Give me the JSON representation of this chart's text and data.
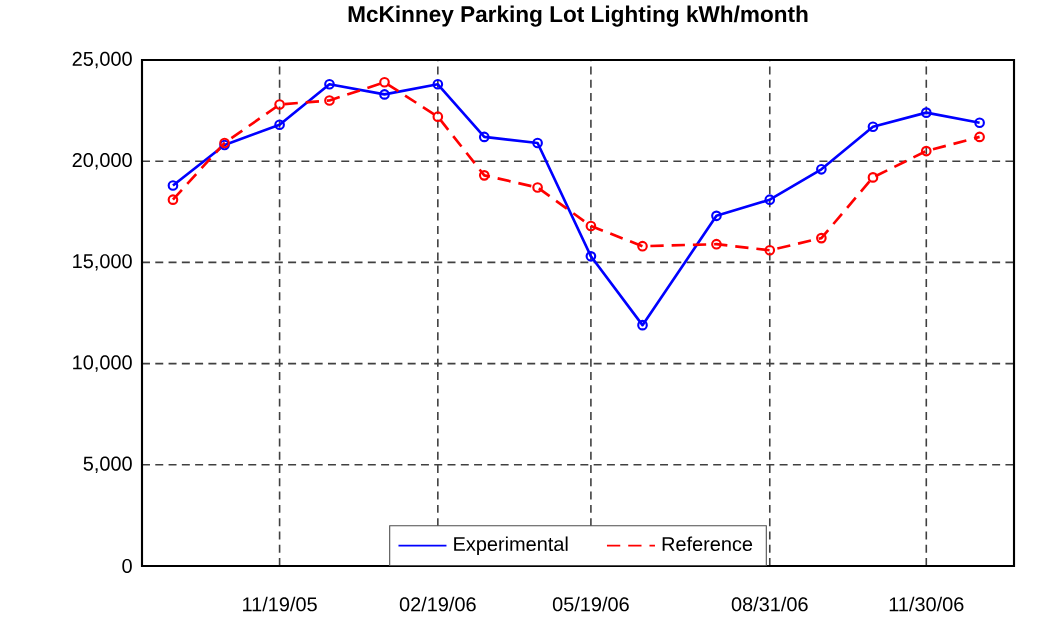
{
  "chart_data": {
    "type": "line",
    "title": "McKinney Parking Lot Lighting kWh/month",
    "x": [
      "2005-09-18",
      "2005-10-18",
      "2005-11-19",
      "2005-12-18",
      "2006-01-19",
      "2006-02-19",
      "2006-03-18",
      "2006-04-18",
      "2006-05-19",
      "2006-06-18",
      "2006-07-31",
      "2006-08-31",
      "2006-09-30",
      "2006-10-30",
      "2006-11-30",
      "2006-12-31"
    ],
    "series": [
      {
        "name": "Experimental",
        "color": "#0000ff",
        "line_style": "solid",
        "values": [
          18800,
          20800,
          21800,
          23800,
          23300,
          23800,
          21200,
          20900,
          15300,
          11900,
          17300,
          18100,
          19600,
          21700,
          22400,
          21900
        ]
      },
      {
        "name": "Reference",
        "color": "#ff0000",
        "line_style": "dashed",
        "values": [
          18100,
          20900,
          22800,
          23000,
          23900,
          22200,
          19300,
          18700,
          16800,
          15800,
          15900,
          15600,
          16200,
          19200,
          20500,
          21200
        ]
      }
    ],
    "xlim": [
      "2005-08-31",
      "2007-01-20"
    ],
    "xticks": [
      {
        "value": "2005-11-19",
        "label": "11/19/05"
      },
      {
        "value": "2006-02-19",
        "label": "02/19/06"
      },
      {
        "value": "2006-05-19",
        "label": "05/19/06"
      },
      {
        "value": "2006-08-31",
        "label": "08/31/06"
      },
      {
        "value": "2006-11-30",
        "label": "11/30/06"
      }
    ],
    "ylim": [
      0,
      25000
    ],
    "yticks": [
      0,
      {
        "value": 5000,
        "label": "5,000"
      },
      {
        "value": 10000,
        "label": "10,000"
      },
      {
        "value": 15000,
        "label": "15,000"
      },
      {
        "value": 20000,
        "label": "20,000"
      },
      {
        "value": 25000,
        "label": "25,000"
      }
    ],
    "grid": true,
    "legend": "bottom",
    "marker": "circle"
  }
}
